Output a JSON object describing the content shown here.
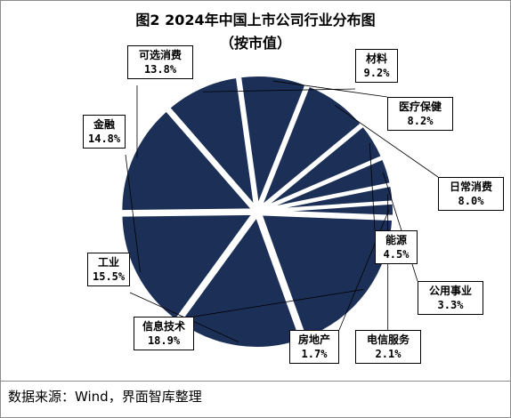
{
  "chart_data": {
    "type": "pie",
    "title": "图2 2024年中国上市公司行业分布图",
    "subtitle": "（按市值）",
    "slice_color": "#1c3057",
    "start_angle_deg": 2.2,
    "slices": [
      {
        "label": "信息技术",
        "value_text": "18.9%",
        "value": 18.9
      },
      {
        "label": "工业",
        "value_text": "15.5%",
        "value": 15.5
      },
      {
        "label": "金融",
        "value_text": "14.8%",
        "value": 14.8
      },
      {
        "label": "可选消费",
        "value_text": "13.8%",
        "value": 13.8
      },
      {
        "label": "材料",
        "value_text": "9.2%",
        "value": 9.2
      },
      {
        "label": "医疗保健",
        "value_text": "8.2%",
        "value": 8.2
      },
      {
        "label": "日常消费",
        "value_text": "8.0%",
        "value": 8.0
      },
      {
        "label": "能源",
        "value_text": "4.5%",
        "value": 4.5
      },
      {
        "label": "公用事业",
        "value_text": "3.3%",
        "value": 3.3
      },
      {
        "label": "电信服务",
        "value_text": "2.1%",
        "value": 2.1
      },
      {
        "label": "房地产",
        "value_text": "1.7%",
        "value": 1.7
      }
    ]
  },
  "source": "数据来源：Wind，界面智库整理"
}
